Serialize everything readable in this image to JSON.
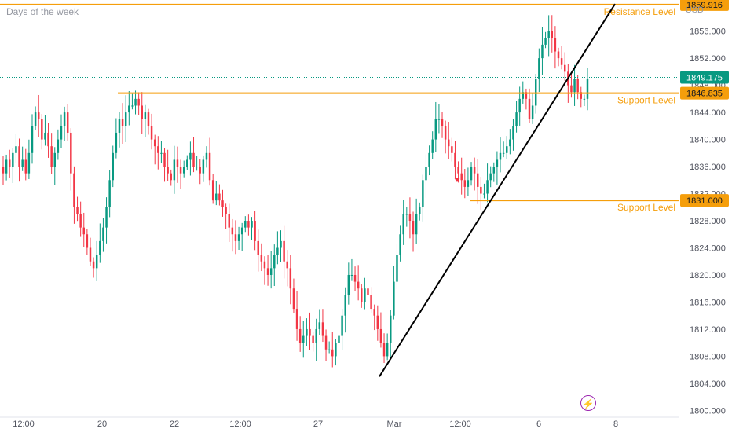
{
  "header": {
    "subtitle": "Days of the week",
    "currency": "USD"
  },
  "chart_data": {
    "type": "candlestick",
    "yaxis": {
      "ticks": [
        1800,
        1804,
        1808,
        1812,
        1816,
        1820,
        1824,
        1828,
        1832,
        1836,
        1840,
        1844,
        1848,
        1852,
        1856
      ],
      "tick_labels": [
        "1800.000",
        "1804.000",
        "1808.000",
        "1812.000",
        "1816.000",
        "1820.000",
        "1824.000",
        "1828.000",
        "1832.000",
        "1836.000",
        "1840.000",
        "1844.000",
        "1848.000",
        "1852.000",
        "1856.000"
      ],
      "range": [
        1799.0,
        1860.6
      ]
    },
    "xaxis": {
      "labels": [
        "12:00",
        "20",
        "22",
        "12:00",
        "27",
        "Mar",
        "12:00",
        "6",
        "8"
      ]
    },
    "price_labels": {
      "resistance": "1859.916",
      "current": "1849.175",
      "support_upper": "1846.835",
      "support_lower": "1831.000"
    },
    "levels": [
      {
        "name": "Resistance Level",
        "value": 1859.916,
        "kind": "resistance"
      },
      {
        "name": "Support Level",
        "value": 1846.835,
        "kind": "support"
      },
      {
        "name": "Support Level",
        "value": 1831.0,
        "kind": "support"
      }
    ],
    "current_price": 1849.175,
    "trendline": {
      "start": 1805.0,
      "end": 1860.0
    },
    "closes": [
      1835,
      1837,
      1836,
      1838,
      1839,
      1836,
      1837,
      1835,
      1838,
      1842,
      1844,
      1843,
      1840,
      1841,
      1839,
      1836,
      1838,
      1840,
      1842,
      1844,
      1841,
      1835,
      1830,
      1829,
      1827,
      1826,
      1824,
      1822,
      1821,
      1823,
      1825,
      1827,
      1830,
      1834,
      1838,
      1841,
      1843,
      1842,
      1844,
      1845,
      1845,
      1846,
      1845,
      1843,
      1844,
      1842,
      1840,
      1839,
      1838,
      1838,
      1836,
      1835,
      1834,
      1837,
      1836,
      1835,
      1836,
      1837,
      1838,
      1836,
      1836,
      1835,
      1837,
      1838,
      1834,
      1831,
      1832,
      1831,
      1830,
      1829,
      1827,
      1826,
      1825,
      1826,
      1827,
      1828,
      1827,
      1828,
      1825,
      1823,
      1822,
      1821,
      1820,
      1821,
      1823,
      1824,
      1825,
      1822,
      1821,
      1818,
      1815,
      1812,
      1810,
      1811,
      1812,
      1811,
      1810,
      1812,
      1813,
      1811,
      1809,
      1809,
      1808,
      1810,
      1811,
      1814,
      1817,
      1820,
      1820,
      1819,
      1818,
      1816,
      1818,
      1817,
      1815,
      1814,
      1812,
      1810,
      1808,
      1810,
      1814,
      1819,
      1823,
      1826,
      1829,
      1829,
      1828,
      1826,
      1829,
      1830,
      1834,
      1836,
      1838,
      1840,
      1843,
      1843,
      1842,
      1840,
      1839,
      1838,
      1836,
      1835,
      1834,
      1833,
      1834,
      1836,
      1835,
      1833,
      1832,
      1832,
      1834,
      1835,
      1836,
      1837,
      1838,
      1838,
      1839,
      1840,
      1842,
      1844,
      1846,
      1847,
      1846,
      1843,
      1845,
      1849,
      1852,
      1854,
      1855,
      1856,
      1855,
      1853,
      1852,
      1851,
      1850,
      1848,
      1847,
      1849,
      1847,
      1846,
      1846,
      1849
    ]
  }
}
